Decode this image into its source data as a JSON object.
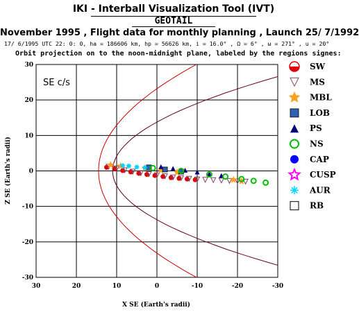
{
  "header": {
    "title": "IKI - Interball Visualization Tool (IVT)",
    "satellite": "GEOTAIL",
    "subtitle": "November 1995 ,  Flight data for monthly planning ,   Launch 25/ 7/1992",
    "params": "17/ 6/1995 UTC 22: 0: 0, ha = 186606 km, hp = 56626 km, i = 16.0° , Ω =   6° , ω = 271° , u =  20°",
    "projection": "Orbit projection on to the noon-midnight plane, labeled by the regions signes:"
  },
  "chart_data": {
    "type": "scatter",
    "title": "",
    "corner_label": "SE c/s",
    "xlabel": "X SE (Earth's radii)",
    "ylabel": "Z SE (Earth's radii)",
    "xlim": [
      30,
      -30
    ],
    "ylim": [
      -30,
      30
    ],
    "x_ticks": [
      "30",
      "20",
      "10",
      "0",
      "-10",
      "-20",
      "-30"
    ],
    "y_ticks": [
      "30",
      "20",
      "10",
      "0",
      "-10",
      "-20",
      "-30"
    ],
    "grid": true,
    "legend_position": "right",
    "series": [
      {
        "name": "SW",
        "color": "#e00000",
        "x": [
          12.5,
          10.5,
          8.5,
          6.5,
          4.5,
          2.5,
          0.5,
          -1.5,
          -3.5,
          -5.5,
          -7.5,
          -9.5
        ],
        "z": [
          1.0,
          0.6,
          0.1,
          -0.3,
          -0.7,
          -1.0,
          -1.3,
          -1.6,
          -1.9,
          -2.1,
          -2.3,
          -2.5
        ]
      },
      {
        "name": "MS",
        "color": "#804060",
        "x": [
          12.0,
          10.0,
          8.0,
          6.0,
          4.0,
          2.0,
          0.0,
          -2.0,
          -4.0,
          -6.0,
          -8.0,
          -10.0,
          -12.0,
          -14.0,
          -16.0,
          -18.0,
          -20.0,
          -22.0
        ],
        "z": [
          1.2,
          0.7,
          0.2,
          -0.2,
          -0.6,
          -0.9,
          -1.2,
          -1.5,
          -1.8,
          -2.0,
          -2.2,
          -2.4,
          -2.5,
          -2.6,
          -2.7,
          -2.8,
          -2.9,
          -3.0
        ]
      },
      {
        "name": "MBL",
        "color": "#ffa020",
        "x": [
          11.5,
          9.0,
          3.0,
          -1.0,
          -5.0,
          -19.0,
          -21.0
        ],
        "z": [
          1.7,
          1.4,
          0.8,
          0.2,
          -0.4,
          -2.5,
          -2.9
        ]
      },
      {
        "name": "LOB",
        "color": "#3060b0",
        "x": [
          2.0,
          -2.0,
          -6.0
        ],
        "z": [
          1.0,
          0.4,
          -0.2
        ]
      },
      {
        "name": "PS",
        "color": "#000080",
        "x": [
          -1.0,
          -4.0,
          -7.0,
          -10.0,
          -13.0,
          -16.0
        ],
        "z": [
          1.2,
          0.7,
          0.2,
          -0.3,
          -0.8,
          -1.3
        ]
      },
      {
        "name": "NS",
        "color": "#00c000",
        "x": [
          1.0,
          -6.0,
          -13.0,
          -17.0,
          -21.0,
          -24.0,
          -27.0
        ],
        "z": [
          0.8,
          0.0,
          -1.0,
          -1.6,
          -2.3,
          -2.8,
          -3.3
        ]
      },
      {
        "name": "CAP",
        "color": "#0000ff",
        "x": [],
        "z": []
      },
      {
        "name": "CUSP",
        "color": "#ff00ff",
        "x": [],
        "z": []
      },
      {
        "name": "AUR",
        "color": "#00d0ff",
        "x": [
          8.5,
          7.0,
          5.0,
          3.0
        ],
        "z": [
          1.5,
          1.4,
          1.1,
          0.9
        ]
      },
      {
        "name": "RB",
        "color": "#000000",
        "x": [],
        "z": []
      }
    ]
  }
}
